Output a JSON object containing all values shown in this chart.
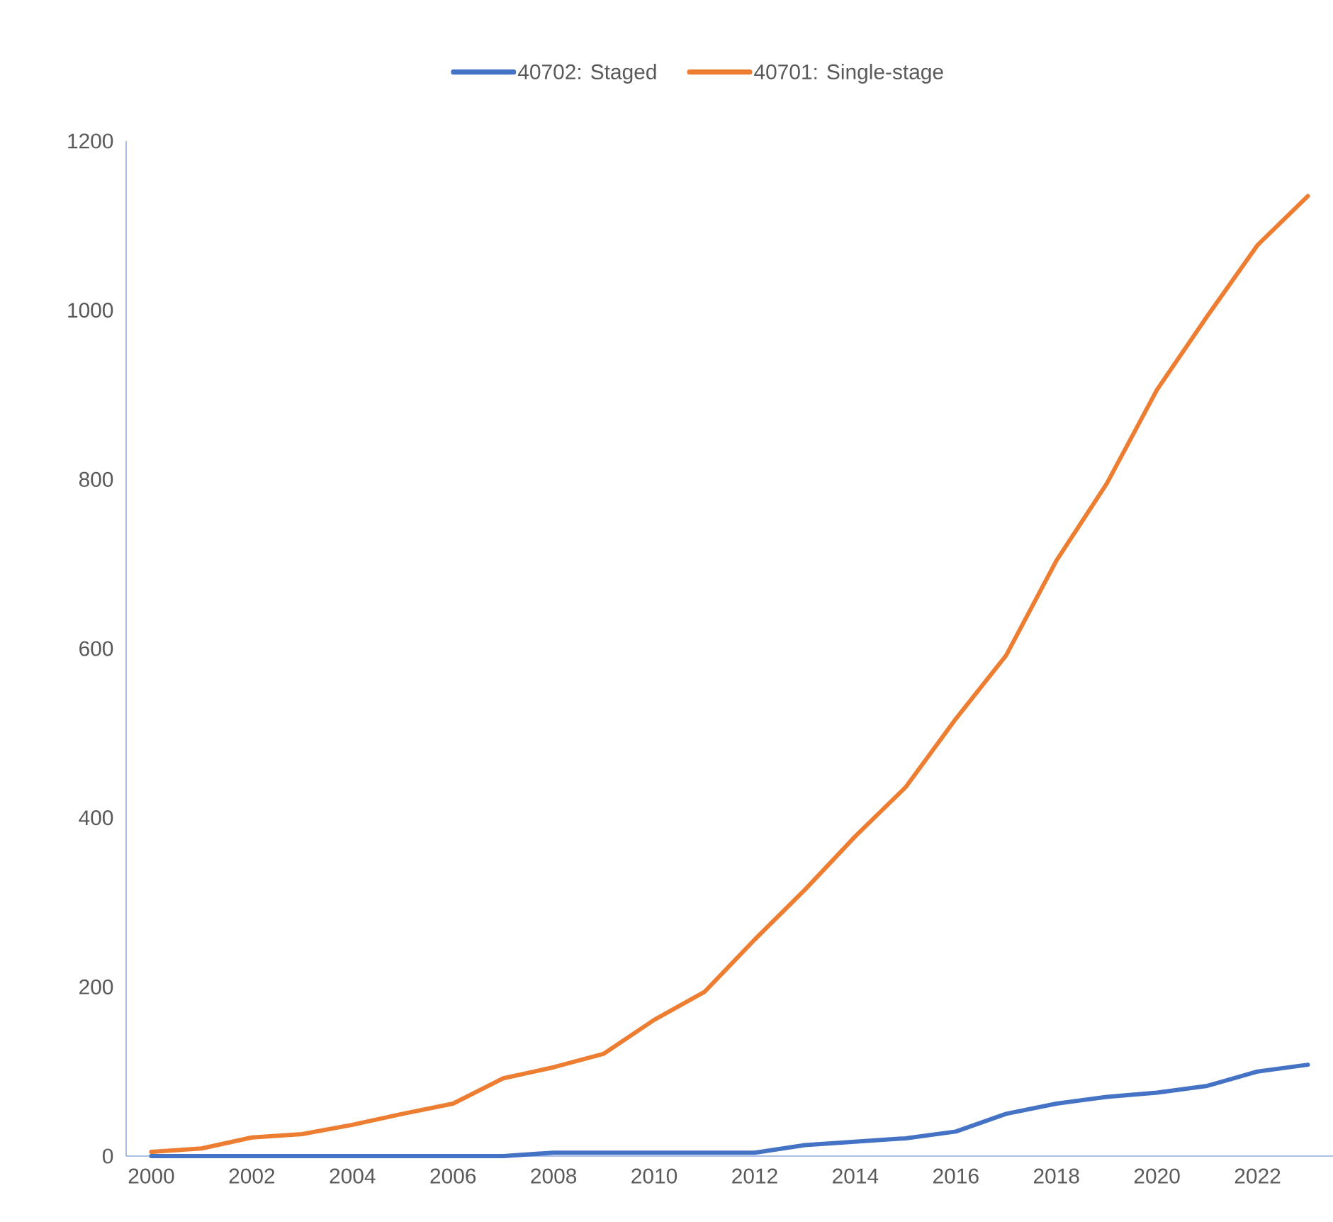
{
  "chart_data": {
    "type": "line",
    "x": [
      2000,
      2001,
      2002,
      2003,
      2004,
      2005,
      2006,
      2007,
      2008,
      2009,
      2010,
      2011,
      2012,
      2013,
      2014,
      2015,
      2016,
      2017,
      2018,
      2019,
      2020,
      2021,
      2022,
      2023
    ],
    "series": [
      {
        "name": "40702: Staged",
        "color": "#4472c4",
        "values": [
          0,
          0,
          0,
          0,
          0,
          0,
          0,
          0,
          4,
          4,
          4,
          4,
          4,
          13,
          17,
          21,
          29,
          50,
          62,
          70,
          75,
          83,
          100,
          108
        ]
      },
      {
        "name": "40701: Single-stage",
        "color": "#ed7d31",
        "values": [
          5,
          9,
          22,
          26,
          37,
          50,
          62,
          92,
          105,
          121,
          161,
          194,
          256,
          315,
          378,
          436,
          517,
          592,
          704,
          795,
          906,
          993,
          1077,
          1135
        ]
      }
    ],
    "xlim": [
      1999.5,
      2023.5
    ],
    "xticks": [
      2000,
      2002,
      2004,
      2006,
      2008,
      2010,
      2012,
      2014,
      2016,
      2018,
      2020,
      2022
    ],
    "ylim": [
      0,
      1200
    ],
    "yticks": [
      0,
      200,
      400,
      600,
      800,
      1000,
      1200
    ],
    "grid": false,
    "legend": "top",
    "marker": "none",
    "line_style": "solid"
  }
}
